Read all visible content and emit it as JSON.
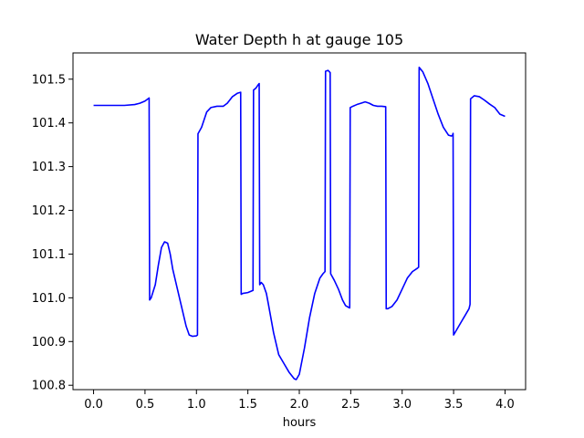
{
  "chart_data": {
    "type": "line",
    "title": "Water Depth h at gauge 105",
    "xlabel": "hours",
    "ylabel": "",
    "xlim": [
      -0.2,
      4.2
    ],
    "ylim": [
      100.79,
      101.56
    ],
    "x_ticks": [
      {
        "value": 0.0,
        "label": "0.0"
      },
      {
        "value": 0.5,
        "label": "0.5"
      },
      {
        "value": 1.0,
        "label": "1.0"
      },
      {
        "value": 1.5,
        "label": "1.5"
      },
      {
        "value": 2.0,
        "label": "2.0"
      },
      {
        "value": 2.5,
        "label": "2.5"
      },
      {
        "value": 3.0,
        "label": "3.0"
      },
      {
        "value": 3.5,
        "label": "3.5"
      },
      {
        "value": 4.0,
        "label": "4.0"
      }
    ],
    "y_ticks": [
      {
        "value": 100.8,
        "label": "100.8"
      },
      {
        "value": 100.9,
        "label": "100.9"
      },
      {
        "value": 101.0,
        "label": "101.0"
      },
      {
        "value": 101.1,
        "label": "101.1"
      },
      {
        "value": 101.2,
        "label": "101.2"
      },
      {
        "value": 101.3,
        "label": "101.3"
      },
      {
        "value": 101.4,
        "label": "101.4"
      },
      {
        "value": 101.5,
        "label": "101.5"
      }
    ],
    "grid": false,
    "legend": "none",
    "series": [
      {
        "color": "#0000ff",
        "x": [
          0.0,
          0.1,
          0.2,
          0.3,
          0.4,
          0.45,
          0.5,
          0.54,
          0.545,
          0.56,
          0.6,
          0.63,
          0.66,
          0.69,
          0.72,
          0.745,
          0.77,
          0.8,
          0.85,
          0.9,
          0.93,
          0.96,
          1.0,
          1.01,
          1.015,
          1.05,
          1.1,
          1.14,
          1.2,
          1.26,
          1.3,
          1.35,
          1.4,
          1.43,
          1.435,
          1.45,
          1.5,
          1.55,
          1.555,
          1.58,
          1.6,
          1.61,
          1.615,
          1.63,
          1.65,
          1.68,
          1.7,
          1.75,
          1.8,
          1.85,
          1.9,
          1.95,
          1.97,
          2.0,
          2.05,
          2.1,
          2.15,
          2.2,
          2.23,
          2.25,
          2.255,
          2.28,
          2.3,
          2.305,
          2.34,
          2.38,
          2.42,
          2.45,
          2.48,
          2.49,
          2.495,
          2.52,
          2.56,
          2.6,
          2.64,
          2.68,
          2.72,
          2.76,
          2.8,
          2.84,
          2.845,
          2.86,
          2.9,
          2.95,
          3.0,
          3.05,
          3.1,
          3.15,
          3.16,
          3.165,
          3.2,
          3.25,
          3.3,
          3.35,
          3.4,
          3.45,
          3.48,
          3.49,
          3.495,
          3.5,
          3.55,
          3.6,
          3.65,
          3.66,
          3.665,
          3.7,
          3.75,
          3.8,
          3.85,
          3.9,
          3.95,
          4.0
        ],
        "y": [
          101.44,
          101.44,
          101.44,
          101.44,
          101.442,
          101.445,
          101.45,
          101.457,
          100.995,
          101.0,
          101.03,
          101.075,
          101.115,
          101.128,
          101.125,
          101.1,
          101.065,
          101.035,
          100.985,
          100.935,
          100.915,
          100.912,
          100.913,
          100.915,
          101.375,
          101.39,
          101.425,
          101.435,
          101.438,
          101.438,
          101.445,
          101.46,
          101.468,
          101.47,
          101.008,
          101.01,
          101.012,
          101.017,
          101.475,
          101.48,
          101.487,
          101.49,
          101.03,
          101.035,
          101.03,
          101.01,
          100.985,
          100.92,
          100.87,
          100.85,
          100.83,
          100.815,
          100.813,
          100.825,
          100.885,
          100.955,
          101.01,
          101.045,
          101.055,
          101.06,
          101.518,
          101.52,
          101.515,
          101.055,
          101.04,
          101.02,
          100.995,
          100.982,
          100.978,
          100.977,
          101.435,
          101.438,
          101.442,
          101.445,
          101.448,
          101.445,
          101.44,
          101.438,
          101.438,
          101.437,
          100.975,
          100.975,
          100.98,
          100.995,
          101.02,
          101.045,
          101.06,
          101.068,
          101.07,
          101.527,
          101.517,
          101.49,
          101.455,
          101.42,
          101.39,
          101.372,
          101.37,
          101.372,
          101.376,
          100.915,
          100.935,
          100.955,
          100.975,
          100.985,
          101.455,
          101.462,
          101.46,
          101.452,
          101.443,
          101.435,
          101.42,
          101.415
        ]
      }
    ]
  }
}
